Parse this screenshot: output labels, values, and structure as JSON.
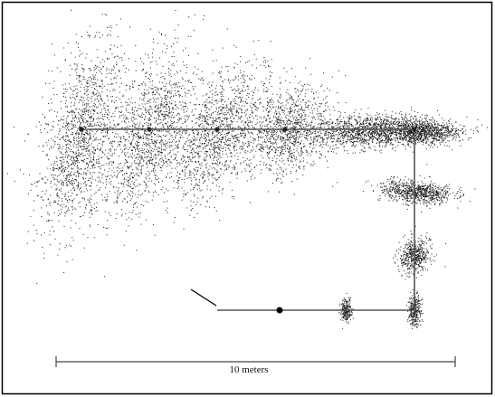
{
  "figure": {
    "scale_bar_label": "10 meters"
  },
  "colors": {
    "frame": "#000000",
    "path_line": "#555555",
    "particles": "#1a1a1a",
    "background": "#ffffff"
  },
  "icons": {
    "arrow": "arrow-icon"
  }
}
